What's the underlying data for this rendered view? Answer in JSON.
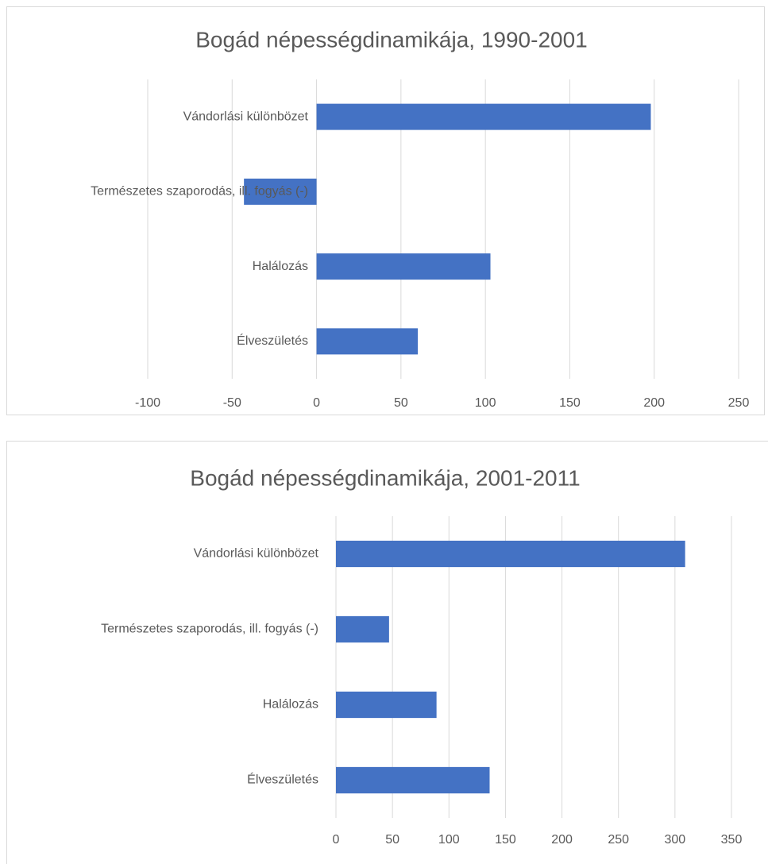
{
  "chart_data": [
    {
      "type": "bar",
      "orientation": "horizontal",
      "title": "Bogád népességdinamikája, 1990-2001",
      "categories": [
        "Vándorlási különbözet",
        "Természetes szaporodás, ill. fogyás   (-)",
        "Halálozás",
        "Élveszületés"
      ],
      "values": [
        198,
        -43,
        103,
        60
      ],
      "color": "#4472c4",
      "xlim": [
        -100,
        250
      ],
      "xticks": [
        -100,
        -50,
        0,
        50,
        100,
        150,
        200,
        250
      ],
      "grid": true
    },
    {
      "type": "bar",
      "orientation": "horizontal",
      "title": "Bogád népességdinamikája, 2001-2011",
      "categories": [
        "Vándorlási különbözet",
        "Természetes szaporodás, ill. fogyás   (-)",
        "Halálozás",
        "Élveszületés"
      ],
      "values": [
        309,
        47,
        89,
        136
      ],
      "color": "#4472c4",
      "xlim": [
        0,
        350
      ],
      "xticks": [
        0,
        50,
        100,
        150,
        200,
        250,
        300,
        350
      ],
      "grid": true
    }
  ]
}
